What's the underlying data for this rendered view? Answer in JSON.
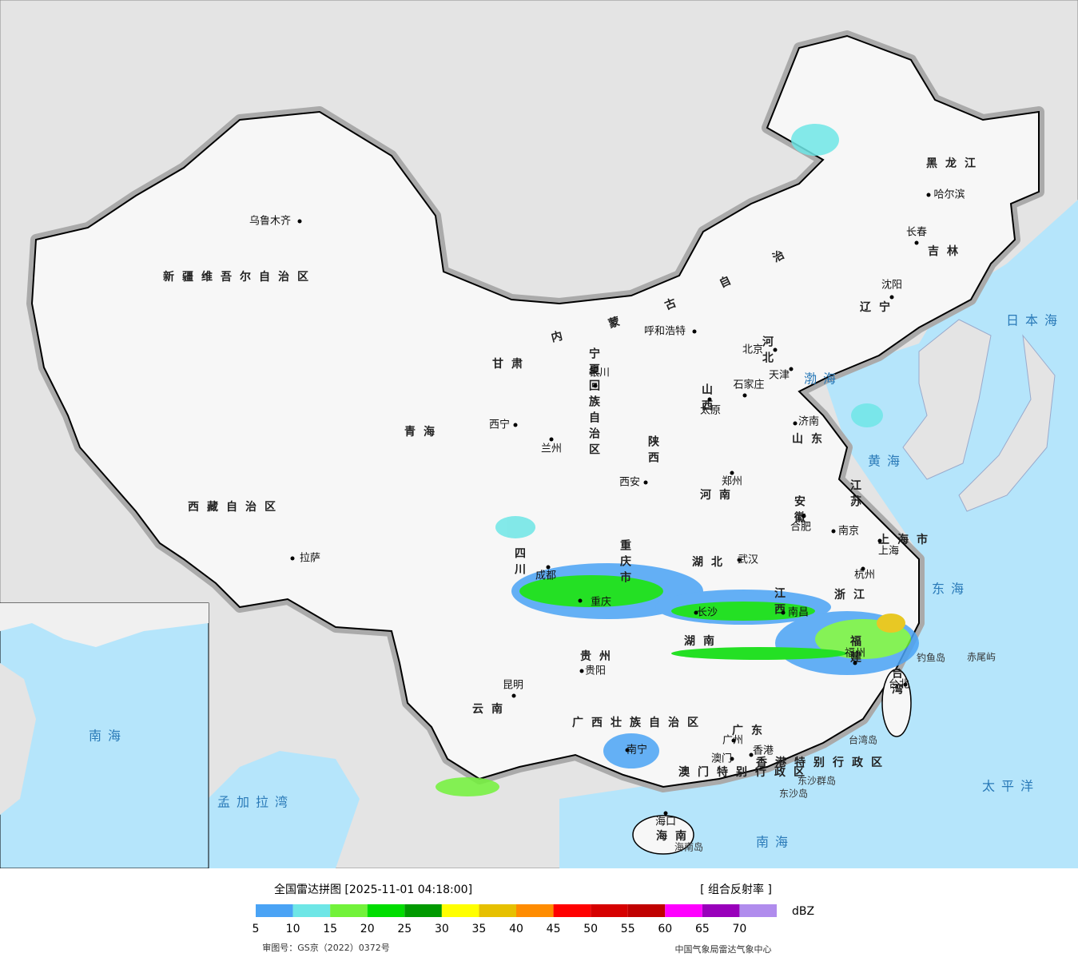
{
  "map": {
    "provinces": [
      "新疆维吾尔自治区",
      "西藏自治区",
      "青海",
      "甘肃",
      "内蒙古自治区",
      "黑龙江",
      "吉林",
      "辽宁",
      "河北",
      "山西",
      "山东",
      "河南",
      "陕西",
      "四川",
      "重庆市",
      "湖北",
      "安徽",
      "江苏",
      "上海市",
      "浙江",
      "江西",
      "湖南",
      "福建",
      "贵州",
      "云南",
      "广西壮族自治区",
      "广东",
      "海南",
      "台湾",
      "宁夏回族自治区",
      "香港特别行政区",
      "澳门特别行政区"
    ],
    "cities": [
      "乌鲁木齐",
      "拉萨",
      "西宁",
      "兰州",
      "银川",
      "呼和浩特",
      "北京",
      "天津",
      "石家庄",
      "太原",
      "济南",
      "郑州",
      "西安",
      "成都",
      "重庆",
      "武汉",
      "合肥",
      "南京",
      "上海",
      "杭州",
      "长沙",
      "南昌",
      "福州",
      "台北",
      "贵阳",
      "昆明",
      "南宁",
      "广州",
      "澳门",
      "香港",
      "海口",
      "哈尔滨",
      "长春",
      "沈阳"
    ],
    "waters": [
      "渤海",
      "黄海",
      "东海",
      "南海",
      "日本海",
      "太平洋",
      "孟加拉湾"
    ],
    "islands": [
      "钓鱼岛",
      "赤尾屿",
      "东沙群岛",
      "东沙岛",
      "台湾岛",
      "海南岛"
    ],
    "inset_labels": [
      "南海"
    ]
  },
  "legend": {
    "title": "全国雷达拼图 [2025-11-01 04:18:00]",
    "product": "[ 组合反射率 ]",
    "unit": "dBZ",
    "ticks": [
      5,
      10,
      15,
      20,
      25,
      30,
      35,
      40,
      45,
      50,
      55,
      60,
      65,
      70
    ],
    "colors": [
      "#4aa3f5",
      "#6ee6e6",
      "#72f23a",
      "#00dd00",
      "#009a00",
      "#ffff00",
      "#e6c000",
      "#ff8c00",
      "#ff0000",
      "#d60000",
      "#c00000",
      "#ff00ff",
      "#9900bb",
      "#b08ced"
    ],
    "approval": "审图号：GS京（2022）0372号",
    "source": "中国气象局雷达气象中心"
  }
}
